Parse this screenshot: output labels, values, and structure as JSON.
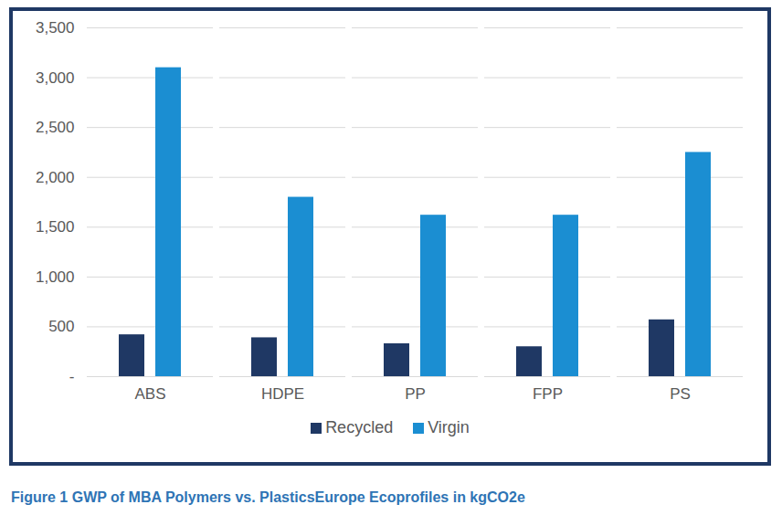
{
  "chart_data": {
    "type": "bar",
    "title": "Figure 1 GWP of MBA Polymers vs. PlasticsEurope Ecoprofiles in kgCO2e",
    "categories": [
      "ABS",
      "HDPE",
      "PP",
      "FPP",
      "PS"
    ],
    "series": [
      {
        "name": "Recycled",
        "color": "#1f3864",
        "values": [
          420,
          390,
          330,
          300,
          570
        ]
      },
      {
        "name": "Virgin",
        "color": "#1b8ed2",
        "values": [
          3100,
          1800,
          1620,
          1620,
          2250
        ]
      }
    ],
    "ylim": [
      0,
      3500
    ],
    "yticks": [
      {
        "value": 0,
        "label": "-"
      },
      500,
      {
        "value": 1000,
        "label": "1,000"
      },
      {
        "value": 1500,
        "label": "1,500"
      },
      {
        "value": 2000,
        "label": "2,000"
      },
      {
        "value": 2500,
        "label": "2,500"
      },
      {
        "value": 3000,
        "label": "3,000"
      },
      {
        "value": 3500,
        "label": "3,500"
      }
    ],
    "grid": true,
    "legend": "bottom"
  }
}
